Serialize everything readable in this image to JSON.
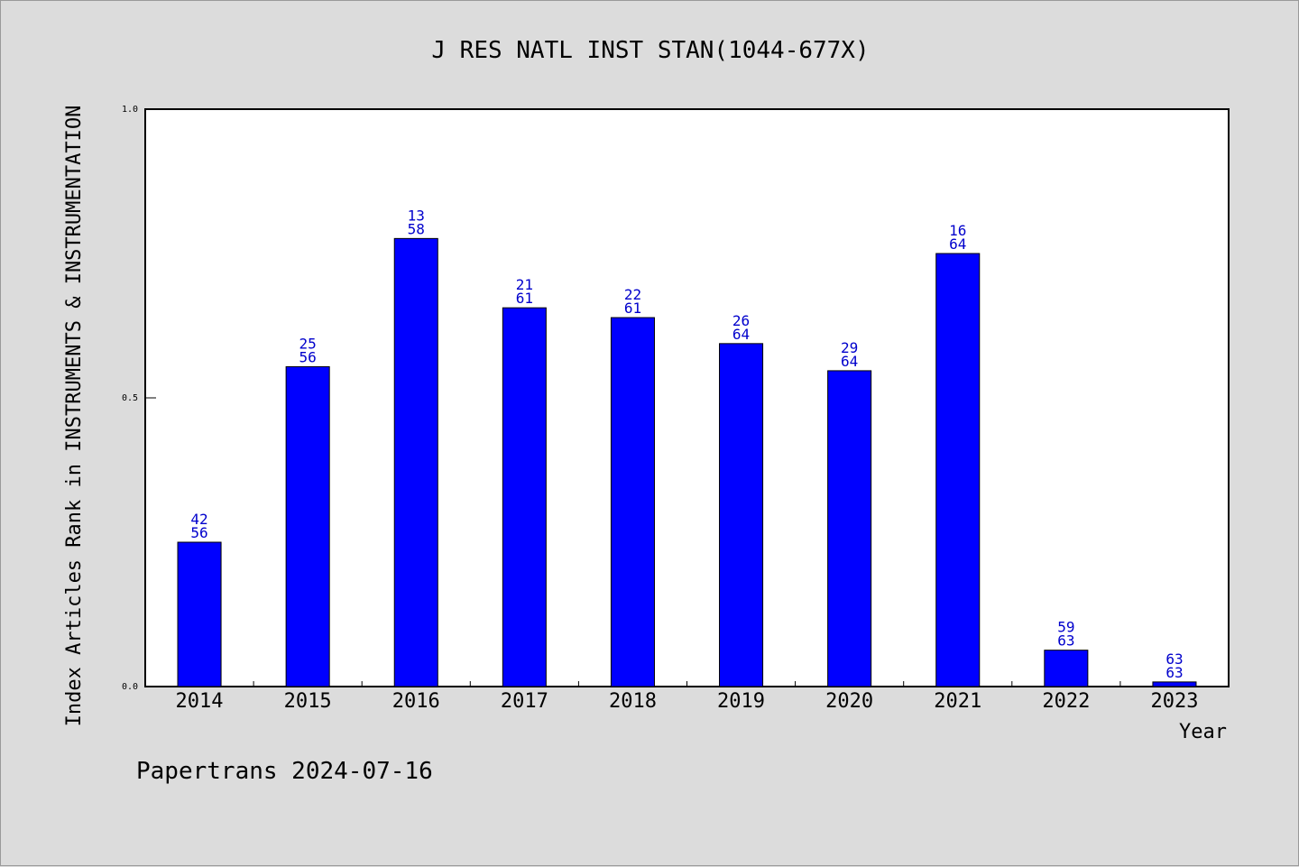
{
  "chart_data": {
    "type": "bar",
    "title": "J RES NATL INST STAN(1044-677X)",
    "xlabel": "Year",
    "ylabel": "Index Articles Rank in INSTRUMENTS & INSTRUMENTATION",
    "ylim": [
      0,
      1
    ],
    "yticks": [
      "0.0",
      "0.5",
      "1.0"
    ],
    "categories": [
      "2014",
      "2015",
      "2016",
      "2017",
      "2018",
      "2019",
      "2020",
      "2021",
      "2022",
      "2023"
    ],
    "values": [
      0.25,
      0.554,
      0.776,
      0.656,
      0.639,
      0.594,
      0.547,
      0.75,
      0.063,
      0.008
    ],
    "labels_top": [
      "42",
      "25",
      "13",
      "21",
      "22",
      "26",
      "29",
      "16",
      "59",
      "63"
    ],
    "labels_bottom": [
      "56",
      "56",
      "58",
      "61",
      "61",
      "64",
      "64",
      "64",
      "63",
      "63"
    ],
    "bar_color": "#0000ff",
    "label_color": "#0000cc",
    "grid": false,
    "legend": "none"
  },
  "footer": {
    "text": "Papertrans 2024-07-16"
  }
}
